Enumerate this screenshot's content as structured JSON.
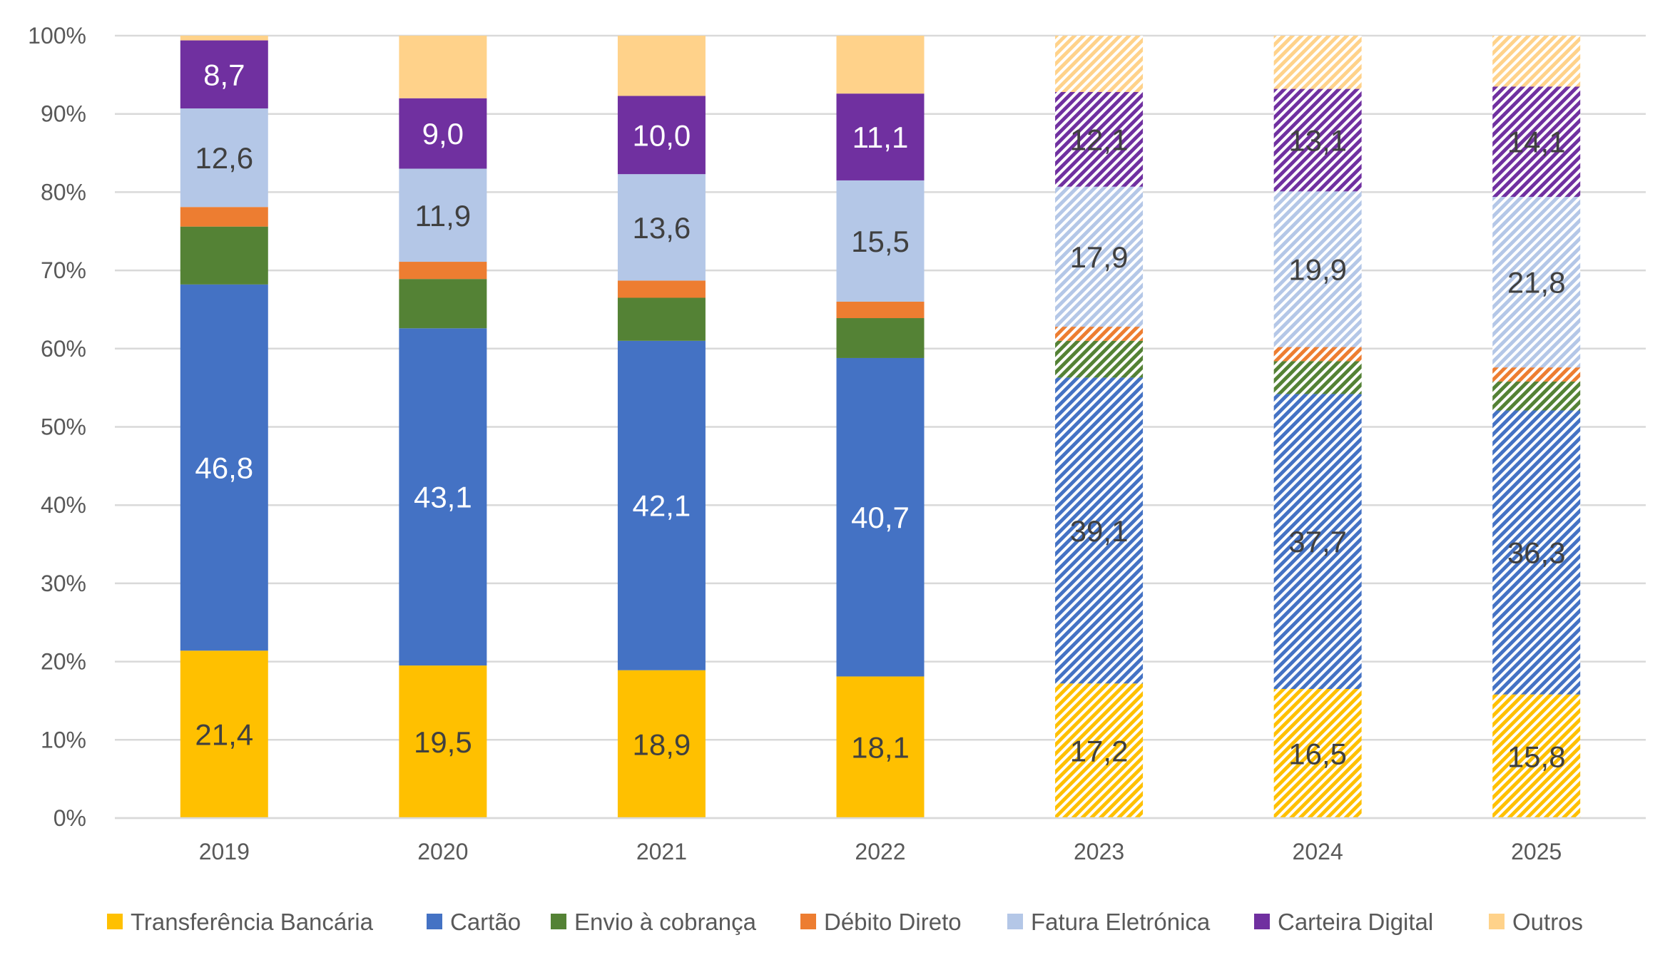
{
  "chart_data": {
    "type": "bar",
    "stacked": "percent",
    "categories": [
      "2019",
      "2020",
      "2021",
      "2022",
      "2023",
      "2024",
      "2025"
    ],
    "hatched_categories": [
      "2023",
      "2024",
      "2025"
    ],
    "ylim": [
      0,
      100
    ],
    "yticks": [
      "0%",
      "10%",
      "20%",
      "30%",
      "40%",
      "50%",
      "60%",
      "70%",
      "80%",
      "90%",
      "100%"
    ],
    "grid": true,
    "legend_position": "bottom",
    "series": [
      {
        "name": "Transferência Bancária",
        "color": "#FFC000",
        "labeled": true,
        "label_color": "#404040",
        "values": [
          21.4,
          19.5,
          18.9,
          18.1,
          17.2,
          16.5,
          15.8
        ],
        "labels": [
          "21,4",
          "19,5",
          "18,9",
          "18,1",
          "17,2",
          "16,5",
          "15,8"
        ]
      },
      {
        "name": "Cartão",
        "color": "#4472C4",
        "labeled": true,
        "label_color": "#FFFFFF",
        "values": [
          46.8,
          43.1,
          42.1,
          40.7,
          39.1,
          37.7,
          36.3
        ],
        "labels": [
          "46,8",
          "43,1",
          "42,1",
          "40,7",
          "39,1",
          "37,7",
          "36,3"
        ]
      },
      {
        "name": "Envio à cobrança",
        "color": "#548235",
        "labeled": false,
        "values": [
          7.4,
          6.3,
          5.5,
          5.1,
          4.7,
          4.2,
          3.7
        ]
      },
      {
        "name": "Débito Direto",
        "color": "#ED7D31",
        "labeled": false,
        "values": [
          2.5,
          2.2,
          2.2,
          2.1,
          1.8,
          1.8,
          1.8
        ]
      },
      {
        "name": "Fatura Eletrónica",
        "color": "#B4C7E7",
        "labeled": true,
        "label_color": "#404040",
        "values": [
          12.6,
          11.9,
          13.6,
          15.5,
          17.9,
          19.9,
          21.8
        ],
        "labels": [
          "12,6",
          "11,9",
          "13,6",
          "15,5",
          "17,9",
          "19,9",
          "21,8"
        ]
      },
      {
        "name": "Carteira Digital",
        "color": "#7030A0",
        "labeled": true,
        "label_color": "#FFFFFF",
        "values": [
          8.7,
          9.0,
          10.0,
          11.1,
          12.1,
          13.1,
          14.1
        ],
        "labels": [
          "8,7",
          "9,0",
          "10,0",
          "11,1",
          "12,1",
          "13,1",
          "14,1"
        ]
      },
      {
        "name": "Outros",
        "color": "#FFD28A",
        "labeled": false,
        "values": [
          0.6,
          8.0,
          7.7,
          7.4,
          7.2,
          6.8,
          6.5
        ]
      }
    ]
  }
}
